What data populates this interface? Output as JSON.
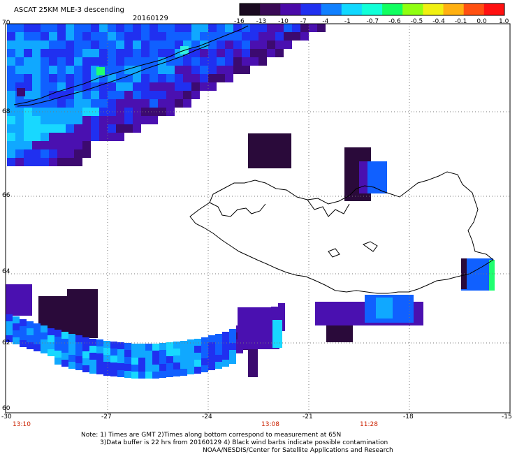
{
  "header": {
    "title": "ASCAT 25KM MLE-3 descending",
    "date": "20160129"
  },
  "colorbar": {
    "labels": [
      "-16",
      "-13",
      "-10",
      "-7",
      "-4",
      "-1",
      "-0.7",
      "-0.6",
      "-0.5",
      "-0.4",
      "-0.1",
      "0.0",
      "1.0"
    ],
    "colors": [
      "#1a0a20",
      "#3a0a55",
      "#4a0aa8",
      "#2030f0",
      "#1080ff",
      "#10d8ff",
      "#10ffd8",
      "#10ff60",
      "#90ff10",
      "#f0f010",
      "#ffb010",
      "#ff5010",
      "#ff1010"
    ]
  },
  "map": {
    "lat_labels": [
      "70",
      "68",
      "66",
      "64",
      "62",
      "60"
    ],
    "lon_labels": [
      "-30",
      "-27",
      "-24",
      "-21",
      "-18",
      "-15"
    ],
    "time_labels": [
      "13:10",
      "13:08",
      "11:28"
    ]
  },
  "footer": {
    "line1": "Note: 1) Times are GMT 2)Times along bottom correspond to measurement at 65N",
    "line2": "3)Data buffer is 22 hrs from 20160129 4) Black wind barbs indicate possible contamination",
    "line3": "NOAA/NESDIS/Center for Satellite Applications and Research"
  }
}
